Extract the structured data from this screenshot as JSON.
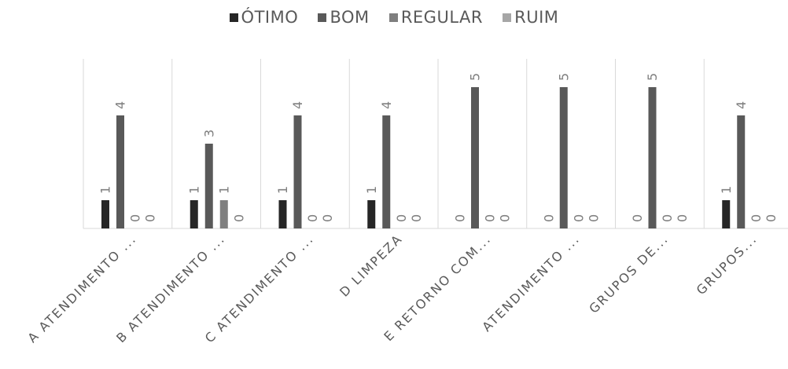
{
  "chart_data": {
    "type": "bar",
    "title": "",
    "xlabel": "",
    "ylabel": "",
    "ylim": [
      0,
      5.6
    ],
    "grid": "vertical category separators",
    "legend": "top-center",
    "categories": [
      "A ATENDIMENTO ...",
      "B ATENDIMENTO ...",
      "C ATENDIMENTO ...",
      "D LIMPEZA",
      "E RETORNO COM...",
      "ATENDIMENTO ...",
      "GRUPOS DE...",
      "GRUPOS..."
    ],
    "series": [
      {
        "name": "ÓTIMO",
        "color": "#262626",
        "values": [
          1,
          1,
          1,
          1,
          0,
          0,
          0,
          1
        ]
      },
      {
        "name": "BOM",
        "color": "#595959",
        "values": [
          4,
          3,
          4,
          4,
          5,
          5,
          5,
          4
        ]
      },
      {
        "name": "REGULAR",
        "color": "#7f7f7f",
        "values": [
          0,
          1,
          0,
          0,
          0,
          0,
          0,
          0
        ]
      },
      {
        "name": "RUIM",
        "color": "#a6a6a6",
        "values": [
          0,
          0,
          0,
          0,
          0,
          0,
          0,
          0
        ]
      }
    ]
  }
}
